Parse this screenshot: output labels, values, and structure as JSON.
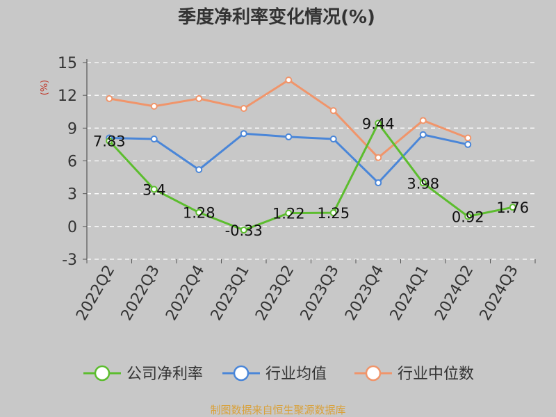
{
  "chart_data": {
    "type": "line",
    "title": "季度净利率变化情况(%)",
    "ylabel": "(%)",
    "xlabel": "",
    "categories": [
      "2022Q2",
      "2022Q3",
      "2022Q4",
      "2023Q1",
      "2023Q2",
      "2023Q3",
      "2023Q4",
      "2024Q1",
      "2024Q2",
      "2024Q3"
    ],
    "yticks": [
      15,
      12,
      9,
      6,
      3,
      0,
      -3
    ],
    "ylim": [
      -3,
      15
    ],
    "grid": true,
    "legend_position": "bottom",
    "series": [
      {
        "name": "公司净利率",
        "color": "#5cbd2e",
        "values": [
          7.83,
          3.4,
          1.28,
          -0.33,
          1.22,
          1.25,
          9.44,
          3.98,
          0.92,
          1.76
        ],
        "labels": [
          "7.83",
          "3.4",
          "1.28",
          "-0.33",
          "1.22",
          "1.25",
          "9.44",
          "3.98",
          "0.92",
          "1.76"
        ]
      },
      {
        "name": "行业均值",
        "color": "#4a86d8",
        "values": [
          8.1,
          8.0,
          5.2,
          8.5,
          8.2,
          8.0,
          4.0,
          8.4,
          7.5,
          null
        ]
      },
      {
        "name": "行业中位数",
        "color": "#f0956b",
        "values": [
          11.7,
          11.0,
          11.7,
          10.8,
          13.4,
          10.6,
          6.3,
          9.7,
          8.1,
          null
        ]
      }
    ]
  },
  "source": "制图数据来自恒生聚源数据库"
}
